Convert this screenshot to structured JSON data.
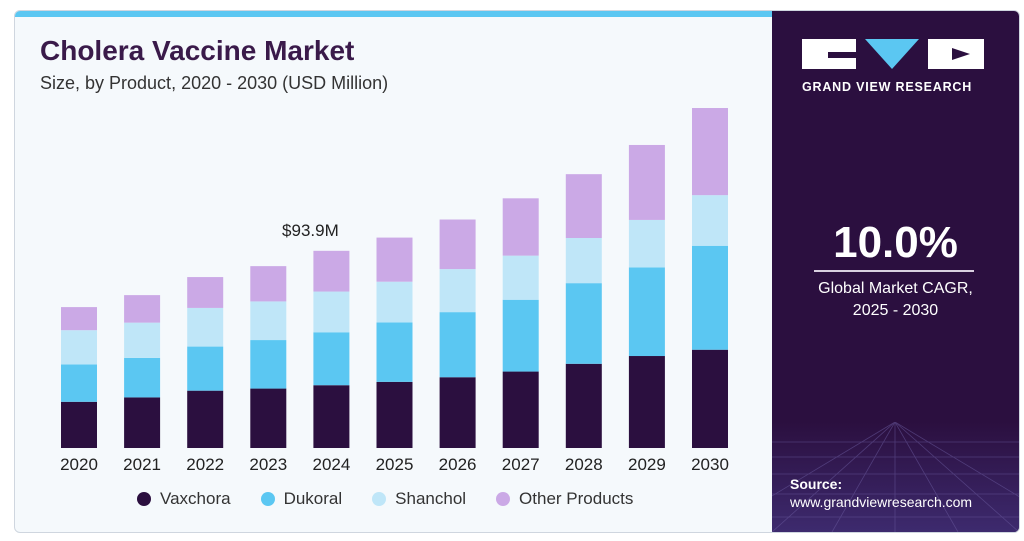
{
  "header": {
    "title": "Cholera Vaccine Market",
    "subtitle": "Size, by Product, 2020 - 2030 (USD Million)"
  },
  "chart_data": {
    "type": "bar",
    "stacked": true,
    "categories": [
      "2020",
      "2021",
      "2022",
      "2023",
      "2024",
      "2025",
      "2026",
      "2027",
      "2028",
      "2029",
      "2030"
    ],
    "series": [
      {
        "name": "Vaxchora",
        "color": "#2b0f3f",
        "values": [
          22.0,
          24.1,
          27.3,
          28.3,
          29.9,
          31.5,
          33.7,
          36.4,
          40.1,
          43.8,
          46.8
        ]
      },
      {
        "name": "Dukoral",
        "color": "#5bc7f2",
        "values": [
          17.8,
          18.8,
          21.0,
          23.1,
          25.2,
          28.3,
          31.0,
          34.2,
          38.4,
          42.2,
          49.5
        ]
      },
      {
        "name": "Shanchol",
        "color": "#bfe6f8",
        "values": [
          16.3,
          16.8,
          18.4,
          18.4,
          19.4,
          19.4,
          20.5,
          21.0,
          21.5,
          22.6,
          24.1
        ]
      },
      {
        "name": "Other Products",
        "color": "#cba9e6",
        "values": [
          11.0,
          13.1,
          14.7,
          16.8,
          19.4,
          21.0,
          23.6,
          27.3,
          30.4,
          35.7,
          41.5
        ]
      }
    ],
    "annotations": [
      {
        "category": "2024",
        "text": "$93.9M"
      }
    ],
    "ylim": [
      0,
      170
    ],
    "xlabel": "",
    "ylabel": "",
    "legend_position": "bottom",
    "grid": false
  },
  "sidebar": {
    "brand": "GRAND VIEW RESEARCH",
    "cagr_value": "10.0%",
    "cagr_label_line1": "Global Market CAGR,",
    "cagr_label_line2": "2025 - 2030",
    "source_label": "Source:",
    "source_url": "www.grandviewresearch.com"
  }
}
